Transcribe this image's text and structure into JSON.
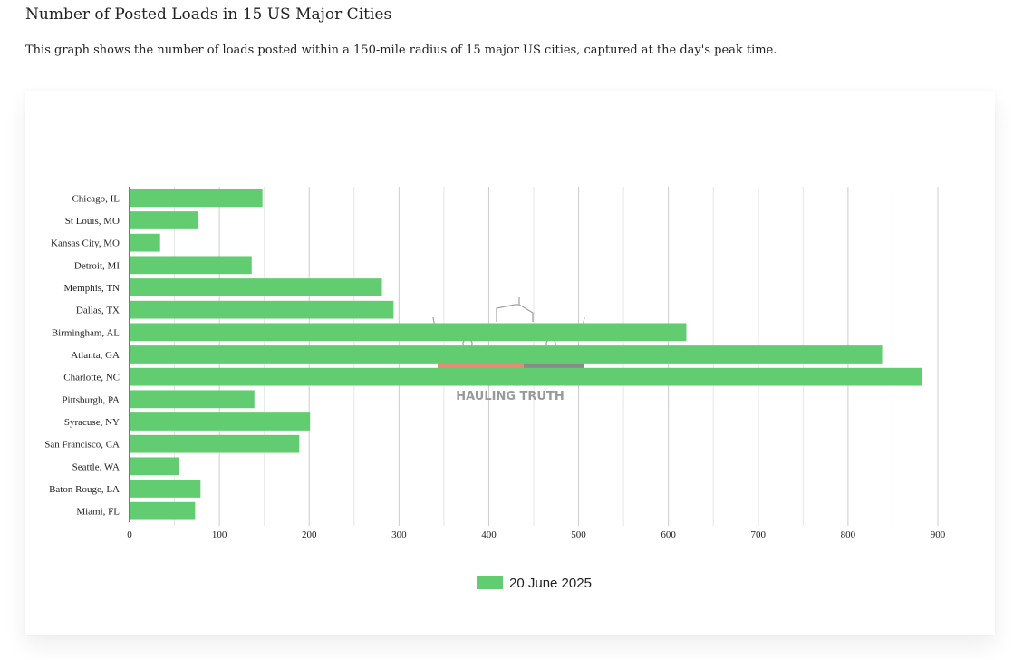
{
  "page": {
    "title": "Number of Posted Loads in 15 US Major Cities",
    "subtitle": "This graph shows the number of loads posted within a 150-mile radius of 15 major US cities, captured at the day's peak time."
  },
  "watermark": {
    "text": "HAULING TRUTH"
  },
  "chart_data": {
    "type": "bar",
    "orientation": "horizontal",
    "title": "Number of Posted Loads in 15 US Major Cities",
    "xlabel": "",
    "ylabel": "",
    "xlim": [
      0,
      900
    ],
    "x_ticks": [
      0,
      100,
      200,
      300,
      400,
      500,
      600,
      700,
      800,
      900
    ],
    "grid": true,
    "legend_position": "bottom",
    "categories": [
      "Chicago, IL",
      "St Louis, MO",
      "Kansas City, MO",
      "Detroit, MI",
      "Memphis, TN",
      "Dallas, TX",
      "Birmingham, AL",
      "Atlanta, GA",
      "Charlotte, NC",
      "Pittsburgh, PA",
      "Syracuse, NY",
      "San Francisco, CA",
      "Seattle, WA",
      "Baton Rouge, LA",
      "Miami, FL"
    ],
    "series": [
      {
        "name": "20 June 2025",
        "color": "#62cd70",
        "values": [
          148,
          76,
          34,
          136,
          281,
          294,
          620,
          838,
          882,
          139,
          201,
          189,
          55,
          79,
          73
        ]
      }
    ]
  }
}
